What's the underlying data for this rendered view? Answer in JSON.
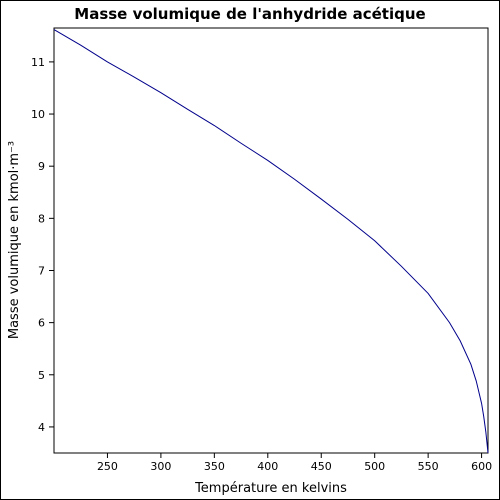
{
  "chart_data": {
    "type": "line",
    "title": "Masse volumique de l'anhydride acétique",
    "xlabel": "Température en kelvins",
    "ylabel": "Masse volumique en kmol·m⁻³",
    "xlim": [
      200,
      606
    ],
    "ylim": [
      3.5,
      11.65
    ],
    "x_ticks": [
      250,
      300,
      350,
      400,
      450,
      500,
      550,
      600
    ],
    "y_ticks": [
      4,
      5,
      6,
      7,
      8,
      9,
      10,
      11
    ],
    "grid": false,
    "line_color": "#00008b",
    "series": [
      {
        "x": [
          200,
          225,
          250,
          275,
          300,
          325,
          350,
          375,
          400,
          425,
          450,
          475,
          500,
          525,
          550,
          570,
          580,
          590,
          595,
          600,
          602,
          604,
          606
        ],
        "y": [
          11.62,
          11.32,
          11.0,
          10.71,
          10.41,
          10.09,
          9.78,
          9.44,
          9.11,
          8.75,
          8.37,
          7.98,
          7.57,
          7.08,
          6.56,
          6.0,
          5.65,
          5.2,
          4.88,
          4.45,
          4.2,
          3.9,
          3.5
        ]
      }
    ]
  }
}
